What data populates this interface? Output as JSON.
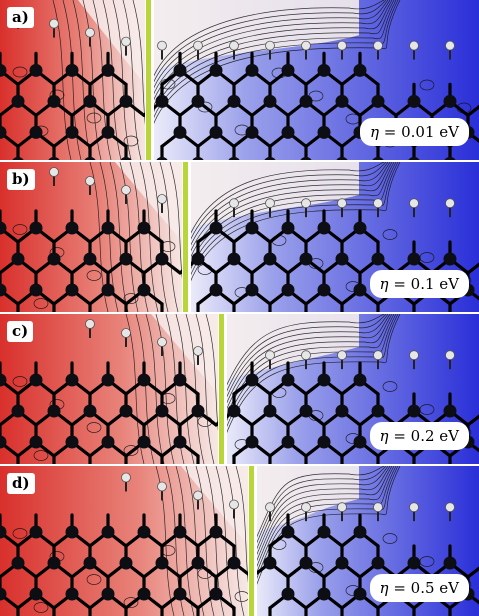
{
  "panels": [
    {
      "label": "a)",
      "eta_symbol": "η",
      "eta_text": "= 0.01 eV",
      "eta_value": 0.01
    },
    {
      "label": "b)",
      "eta_symbol": "η",
      "eta_text": "= 0.1 eV",
      "eta_value": 0.1
    },
    {
      "label": "c)",
      "eta_symbol": "η",
      "eta_text": "= 0.2 eV",
      "eta_value": 0.2
    },
    {
      "label": "d)",
      "eta_symbol": "η",
      "eta_text": "= 0.5 eV",
      "eta_value": 0.5
    }
  ],
  "colors": {
    "positive": "#d9302c",
    "negative": "#2a2fd8",
    "interface_line": "#b8d63a",
    "atom_carbon": "#0d0d14",
    "atom_hydrogen": "#e6e6e6"
  }
}
